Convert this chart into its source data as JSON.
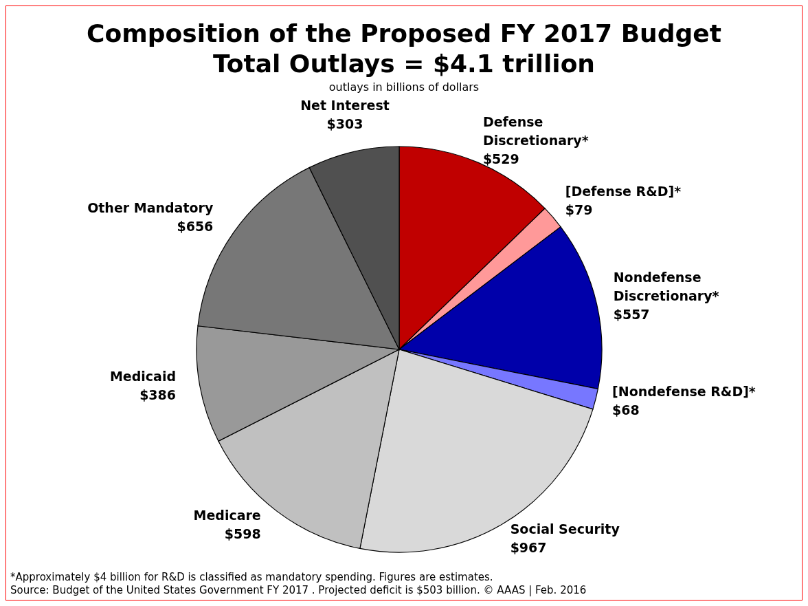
{
  "chart_data": {
    "type": "pie",
    "title": "Composition of the Proposed FY 2017 Budget\nTotal Outlays = $4.1 trillion",
    "subtitle": "outlays in billions of dollars",
    "categories": [
      "Defense Discretionary*",
      "[Defense R&D]*",
      "Nondefense Discretionary*",
      "[Nondefense R&D]*",
      "Social Security",
      "Medicare",
      "Medicaid",
      "Other Mandatory",
      "Net Interest"
    ],
    "values": [
      529,
      79,
      557,
      68,
      967,
      598,
      386,
      656,
      303
    ],
    "value_labels": [
      "$529",
      "$79",
      "$557",
      "$68",
      "$967",
      "$598",
      "$386",
      "$656",
      "$303"
    ],
    "colors": [
      "#c00000",
      "#ff9999",
      "#0000aa",
      "#7777ff",
      "#d9d9d9",
      "#c0c0c0",
      "#999999",
      "#777777",
      "#505050"
    ],
    "legend": false,
    "annotations": [
      "*Approximately $4 billion for R&D is classified as mandatory spending. Figures are estimates.",
      "Source: Budget of the United States Government FY 2017 .  Projected deficit is $503 billion. © AAAS | Feb. 2016"
    ]
  }
}
